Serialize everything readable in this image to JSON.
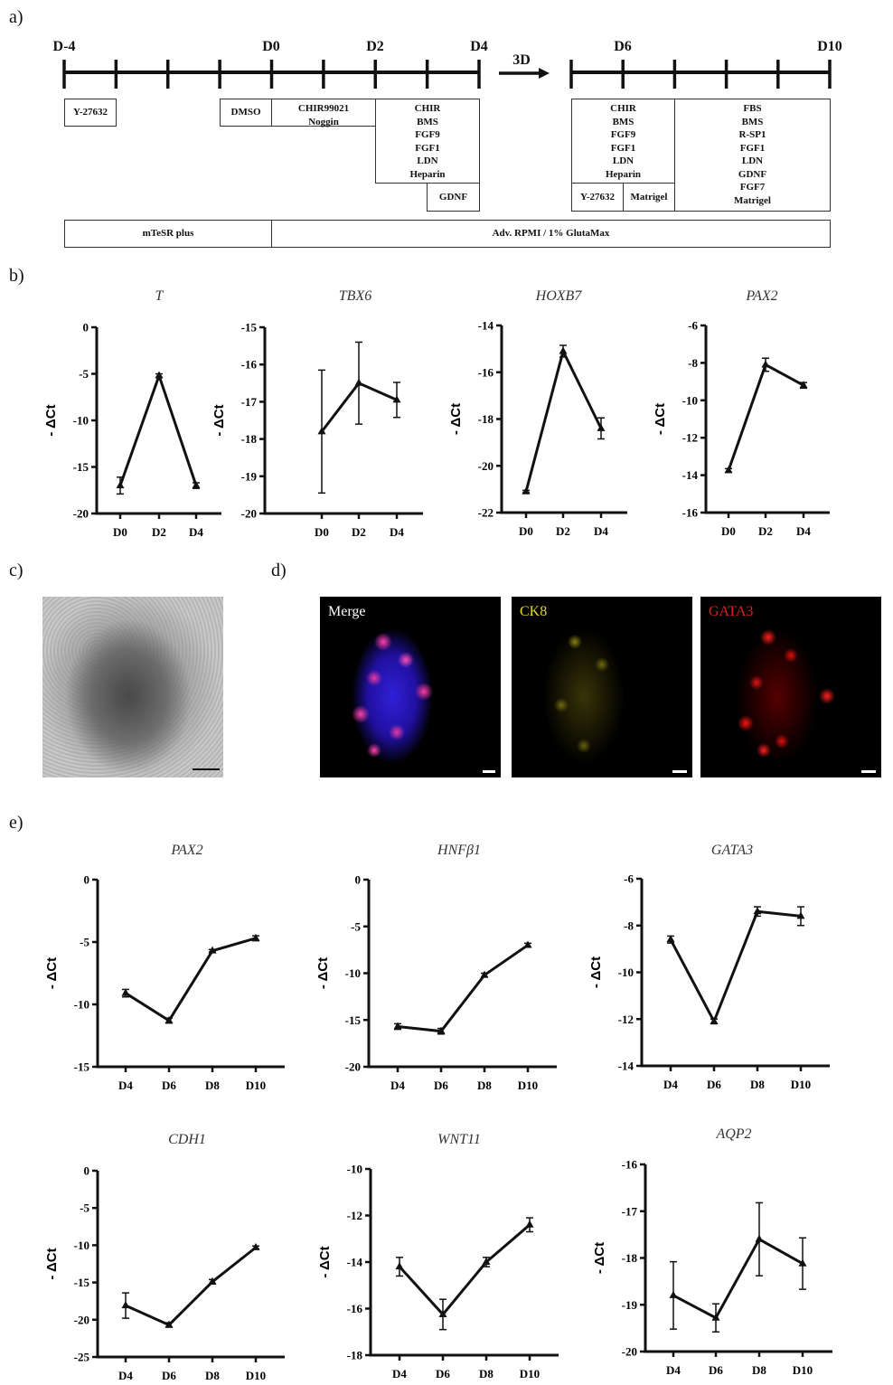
{
  "panel_labels": {
    "a": "a)",
    "b": "b)",
    "c": "c)",
    "d": "d)",
    "e": "e)"
  },
  "timeline": {
    "days": {
      "dm4": "D-4",
      "d0": "D0",
      "d2": "D2",
      "d4": "D4",
      "d6": "D6",
      "d10": "D10"
    },
    "arrow_label": "3D",
    "boxes": {
      "y27632_a": [
        "Y-27632"
      ],
      "dmso": [
        "DMSO"
      ],
      "chir_noggin": [
        "CHIR99021",
        "Noggin"
      ],
      "stage2": [
        "CHIR",
        "BMS",
        "FGF9",
        "FGF1",
        "LDN",
        "Heparin"
      ],
      "gdnf": [
        "GDNF"
      ],
      "stage3": [
        "CHIR",
        "BMS",
        "FGF9",
        "FGF1",
        "LDN",
        "Heparin"
      ],
      "y27632_b": [
        "Y-27632"
      ],
      "matrigel": [
        "Matrigel"
      ],
      "stage4": [
        "FBS",
        "BMS",
        "R-SP1",
        "FGF1",
        "LDN",
        "GDNF",
        "FGF7",
        "Matrigel"
      ],
      "mtesr": [
        "mTeSR plus"
      ],
      "rpmi": [
        "Adv. RPMI / 1% GlutaMax"
      ]
    }
  },
  "images": {
    "merge_label": "Merge",
    "ck8_label": "CK8",
    "gata3_label": "GATA3",
    "colors": {
      "merge": "#ffffff",
      "ck8": "#e6d82a",
      "gata3": "#e02020"
    }
  },
  "chart_data": [
    {
      "type": "line",
      "title": "T",
      "ylabel": "- ΔCt",
      "categories": [
        "D0",
        "D2",
        "D4"
      ],
      "values": [
        -17.0,
        -5.2,
        -17.0
      ],
      "errors": [
        0.9,
        0.2,
        0.3
      ],
      "ylim": [
        -20,
        0
      ],
      "yticks": [
        0,
        -5,
        -10,
        -15,
        -20
      ],
      "marker": "triangle",
      "grid": false
    },
    {
      "type": "line",
      "title": "TBX6",
      "ylabel": "- ΔCt",
      "categories": [
        "D0",
        "D2",
        "D4"
      ],
      "values": [
        -17.8,
        -16.5,
        -16.95
      ],
      "errors": [
        1.65,
        1.1,
        0.47
      ],
      "ylim": [
        -20,
        -15
      ],
      "yticks": [
        -15,
        -16,
        -17,
        -18,
        -19,
        -20
      ],
      "marker": "triangle",
      "grid": false
    },
    {
      "type": "line",
      "title": "HOXB7",
      "ylabel": "- ΔCt",
      "categories": [
        "D0",
        "D2",
        "D4"
      ],
      "values": [
        -21.1,
        -15.1,
        -18.4
      ],
      "errors": [
        0.05,
        0.25,
        0.45
      ],
      "ylim": [
        -22,
        -14
      ],
      "yticks": [
        -14,
        -16,
        -18,
        -20,
        -22
      ],
      "marker": "triangle",
      "grid": false
    },
    {
      "type": "line",
      "title": "PAX2",
      "ylabel": "- ΔCt",
      "categories": [
        "D0",
        "D2",
        "D4"
      ],
      "values": [
        -13.75,
        -8.1,
        -9.2
      ],
      "errors": [
        0.1,
        0.35,
        0.15
      ],
      "ylim": [
        -16,
        -6
      ],
      "yticks": [
        -6,
        -8,
        -10,
        -12,
        -14,
        -16
      ],
      "marker": "triangle",
      "grid": false
    },
    {
      "type": "line",
      "title": "PAX2",
      "ylabel": "- ΔCt",
      "categories": [
        "D4",
        "D6",
        "D8",
        "D10"
      ],
      "values": [
        -9.1,
        -11.3,
        -5.7,
        -4.7
      ],
      "errors": [
        0.3,
        0.2,
        0.1,
        0.2
      ],
      "ylim": [
        -15,
        0
      ],
      "yticks": [
        0,
        -5,
        -10,
        -15
      ],
      "marker": "triangle",
      "grid": false
    },
    {
      "type": "line",
      "title": "HNFβ1",
      "ylabel": "- ΔCt",
      "categories": [
        "D4",
        "D6",
        "D8",
        "D10"
      ],
      "values": [
        -15.7,
        -16.2,
        -10.2,
        -7.0
      ],
      "errors": [
        0.3,
        0.3,
        0.2,
        0.2
      ],
      "ylim": [
        -20,
        0
      ],
      "yticks": [
        0,
        -5,
        -10,
        -15,
        -20
      ],
      "marker": "triangle",
      "grid": false
    },
    {
      "type": "line",
      "title": "GATA3",
      "ylabel": "- ΔCt",
      "categories": [
        "D4",
        "D6",
        "D8",
        "D10"
      ],
      "values": [
        -8.6,
        -12.1,
        -7.4,
        -7.6
      ],
      "errors": [
        0.15,
        0.1,
        0.2,
        0.4
      ],
      "ylim": [
        -14,
        -6
      ],
      "yticks": [
        -6,
        -8,
        -10,
        -12,
        -14
      ],
      "marker": "triangle",
      "grid": false
    },
    {
      "type": "line",
      "title": "CDH1",
      "ylabel": "- ΔCt",
      "categories": [
        "D4",
        "D6",
        "D8",
        "D10"
      ],
      "values": [
        -18.1,
        -20.7,
        -14.9,
        -10.3
      ],
      "errors": [
        1.7,
        0.3,
        0.3,
        0.2
      ],
      "ylim": [
        -25,
        0
      ],
      "yticks": [
        0,
        -5,
        -10,
        -15,
        -20,
        -25
      ],
      "marker": "triangle",
      "grid": false
    },
    {
      "type": "line",
      "title": "WNT11",
      "ylabel": "- ΔCt",
      "categories": [
        "D4",
        "D6",
        "D8",
        "D10"
      ],
      "values": [
        -14.2,
        -16.25,
        -14.0,
        -12.4
      ],
      "errors": [
        0.4,
        0.65,
        0.2,
        0.3
      ],
      "ylim": [
        -18,
        -10
      ],
      "yticks": [
        -10,
        -12,
        -14,
        -16,
        -18
      ],
      "marker": "triangle",
      "grid": false
    },
    {
      "type": "line",
      "title": "AQP2",
      "ylabel": "- ΔCt",
      "categories": [
        "D4",
        "D6",
        "D8",
        "D10"
      ],
      "values": [
        -18.8,
        -19.28,
        -17.6,
        -18.12
      ],
      "errors": [
        0.72,
        0.3,
        0.78,
        0.55
      ],
      "ylim": [
        -20,
        -16
      ],
      "yticks": [
        -16,
        -17,
        -18,
        -19,
        -20
      ],
      "marker": "triangle",
      "grid": false
    }
  ]
}
